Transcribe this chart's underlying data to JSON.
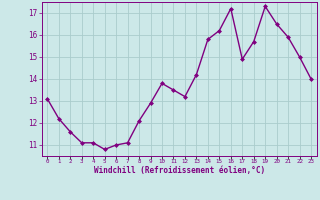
{
  "x": [
    0,
    1,
    2,
    3,
    4,
    5,
    6,
    7,
    8,
    9,
    10,
    11,
    12,
    13,
    14,
    15,
    16,
    17,
    18,
    19,
    20,
    21,
    22,
    23
  ],
  "y": [
    13.1,
    12.2,
    11.6,
    11.1,
    11.1,
    10.8,
    11.0,
    11.1,
    12.1,
    12.9,
    13.8,
    13.5,
    13.2,
    14.2,
    15.8,
    16.2,
    17.2,
    14.9,
    15.7,
    17.3,
    16.5,
    15.9,
    15.0,
    14.0
  ],
  "line_color": "#800080",
  "marker": "D",
  "marker_size": 2.0,
  "bg_color": "#cce8e8",
  "grid_color": "#aacccc",
  "xlabel": "Windchill (Refroidissement éolien,°C)",
  "xlabel_color": "#800080",
  "tick_color": "#800080",
  "ylabel_ticks": [
    11,
    12,
    13,
    14,
    15,
    16,
    17
  ],
  "xlim": [
    -0.5,
    23.5
  ],
  "ylim": [
    10.5,
    17.5
  ],
  "xtick_labels": [
    "0",
    "1",
    "2",
    "3",
    "4",
    "5",
    "6",
    "7",
    "8",
    "9",
    "10",
    "11",
    "12",
    "13",
    "14",
    "15",
    "16",
    "17",
    "18",
    "19",
    "20",
    "21",
    "22",
    "23"
  ],
  "line_width": 1.0,
  "marker_color": "#800080",
  "spine_color": "#800080"
}
